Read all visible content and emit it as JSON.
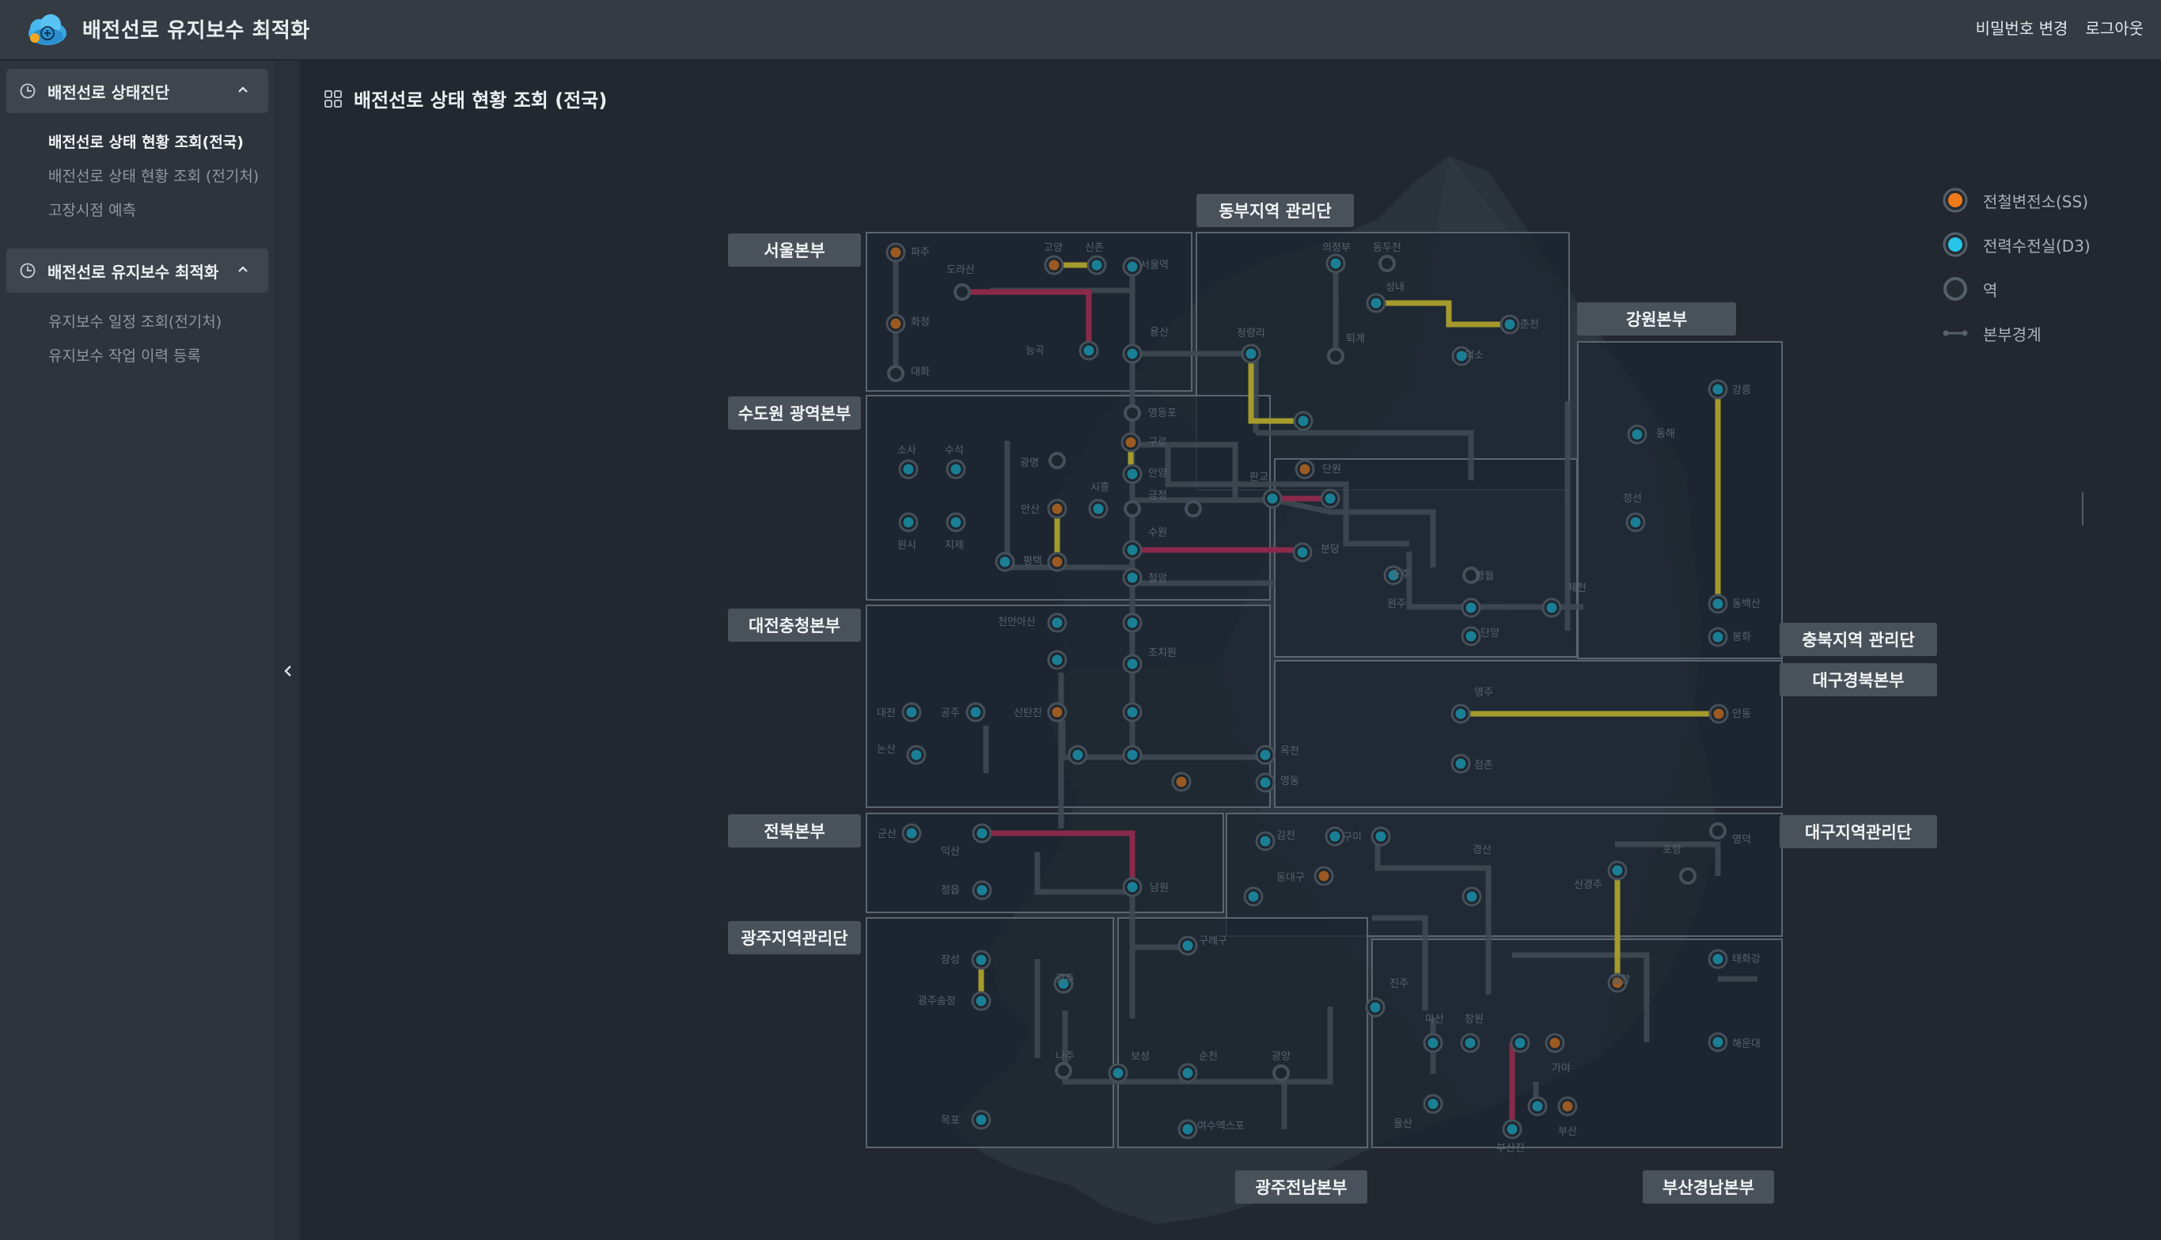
{
  "app": {
    "title": "배전선로 유지보수 최적화"
  },
  "header": {
    "links": [
      "비밀번호 변경",
      "로그아웃"
    ]
  },
  "sidebar": {
    "sections": [
      {
        "title": "배전선로 상태진단",
        "items": [
          "배전선로 상태 현황 조회(전국)",
          "배전선로 상태 현황 조회 (전기처)",
          "고장시점 예측"
        ]
      },
      {
        "title": "배전선로 유지보수 최적화",
        "items": [
          "유지보수 일정 조회(전기처)",
          "유지보수 작업 이력 등록"
        ]
      }
    ]
  },
  "page": {
    "title": "배전선로 상태 현황 조회 (전국)"
  },
  "regions": {
    "seoul": "서울본부",
    "east": "동부지역 관리단",
    "gangwon": "강원본부",
    "sudowon": "수도원 광역본부",
    "daejeon": "대전충청본부",
    "chungbuk": "충북지역 관리단",
    "daegyeong": "대구경북본부",
    "jeonbuk": "전북본부",
    "daegu": "대구지역관리단",
    "gwangju_mgmt": "광주지역관리단",
    "gwangju": "광주전남본부",
    "busan": "부산경남본부"
  },
  "legend": {
    "ss": "전철변전소(SS)",
    "d3": "전력수전실(D3)",
    "station": "역",
    "boundary": "본부경계"
  },
  "colors": {
    "ss": "#f07a1a",
    "d3": "#27c6e8",
    "line_yellow": "#a59a2c",
    "line_red": "#8a2a4a",
    "line_gray": "#3c4650"
  },
  "map_text": {
    "s1": "파주",
    "s2": "고양",
    "s3": "신촌",
    "s4": "서울역",
    "s5": "도라산",
    "s6": "화정",
    "s7": "능곡",
    "s8": "용산",
    "s9": "대화",
    "s10": "의정부",
    "s11": "동두천",
    "s12": "성내",
    "s13": "춘천",
    "s14": "청량리",
    "s15": "퇴계",
    "s16": "덕소",
    "s17": "영등포",
    "s18": "구로",
    "s19": "광명",
    "s20": "안양",
    "s21": "소사",
    "s22": "수석",
    "s23": "시흥",
    "s24": "금정",
    "s25": "판교",
    "s26": "단원",
    "s27": "안산",
    "s28": "원시",
    "s29": "지제",
    "s30": "수원",
    "s31": "분당",
    "s32": "평택",
    "s33": "철암",
    "s34": "강릉",
    "s35": "동해",
    "s36": "정선",
    "s37": "영월",
    "s38": "제천",
    "s39": "단양",
    "s40": "동백산",
    "s41": "원주",
    "s42": "봉화",
    "s43": "충주",
    "s44": "천안아산",
    "s45": "조치원",
    "s46": "공주",
    "s47": "대전",
    "s48": "논산",
    "s49": "신탄진",
    "s50": "옥천",
    "s51": "영동",
    "s52": "영주",
    "s53": "점촌",
    "s54": "안동",
    "s55": "군산",
    "s56": "익산",
    "s57": "정읍",
    "s58": "남원",
    "s59": "김천",
    "s60": "구미",
    "s61": "동대구",
    "s62": "경산",
    "s63": "포항",
    "s64": "영덕",
    "s65": "신경주",
    "s66": "장성",
    "s67": "광주",
    "s68": "광주송정",
    "s69": "나주",
    "s70": "목포",
    "s71": "구례구",
    "s72": "보성",
    "s73": "순천",
    "s74": "광양",
    "s75": "여수엑스포",
    "s76": "진주",
    "s77": "마산",
    "s78": "창원",
    "s79": "밀양",
    "s80": "부산진",
    "s81": "부산",
    "s82": "해운대",
    "s83": "울산",
    "s84": "태화강",
    "s85": "가야"
  }
}
